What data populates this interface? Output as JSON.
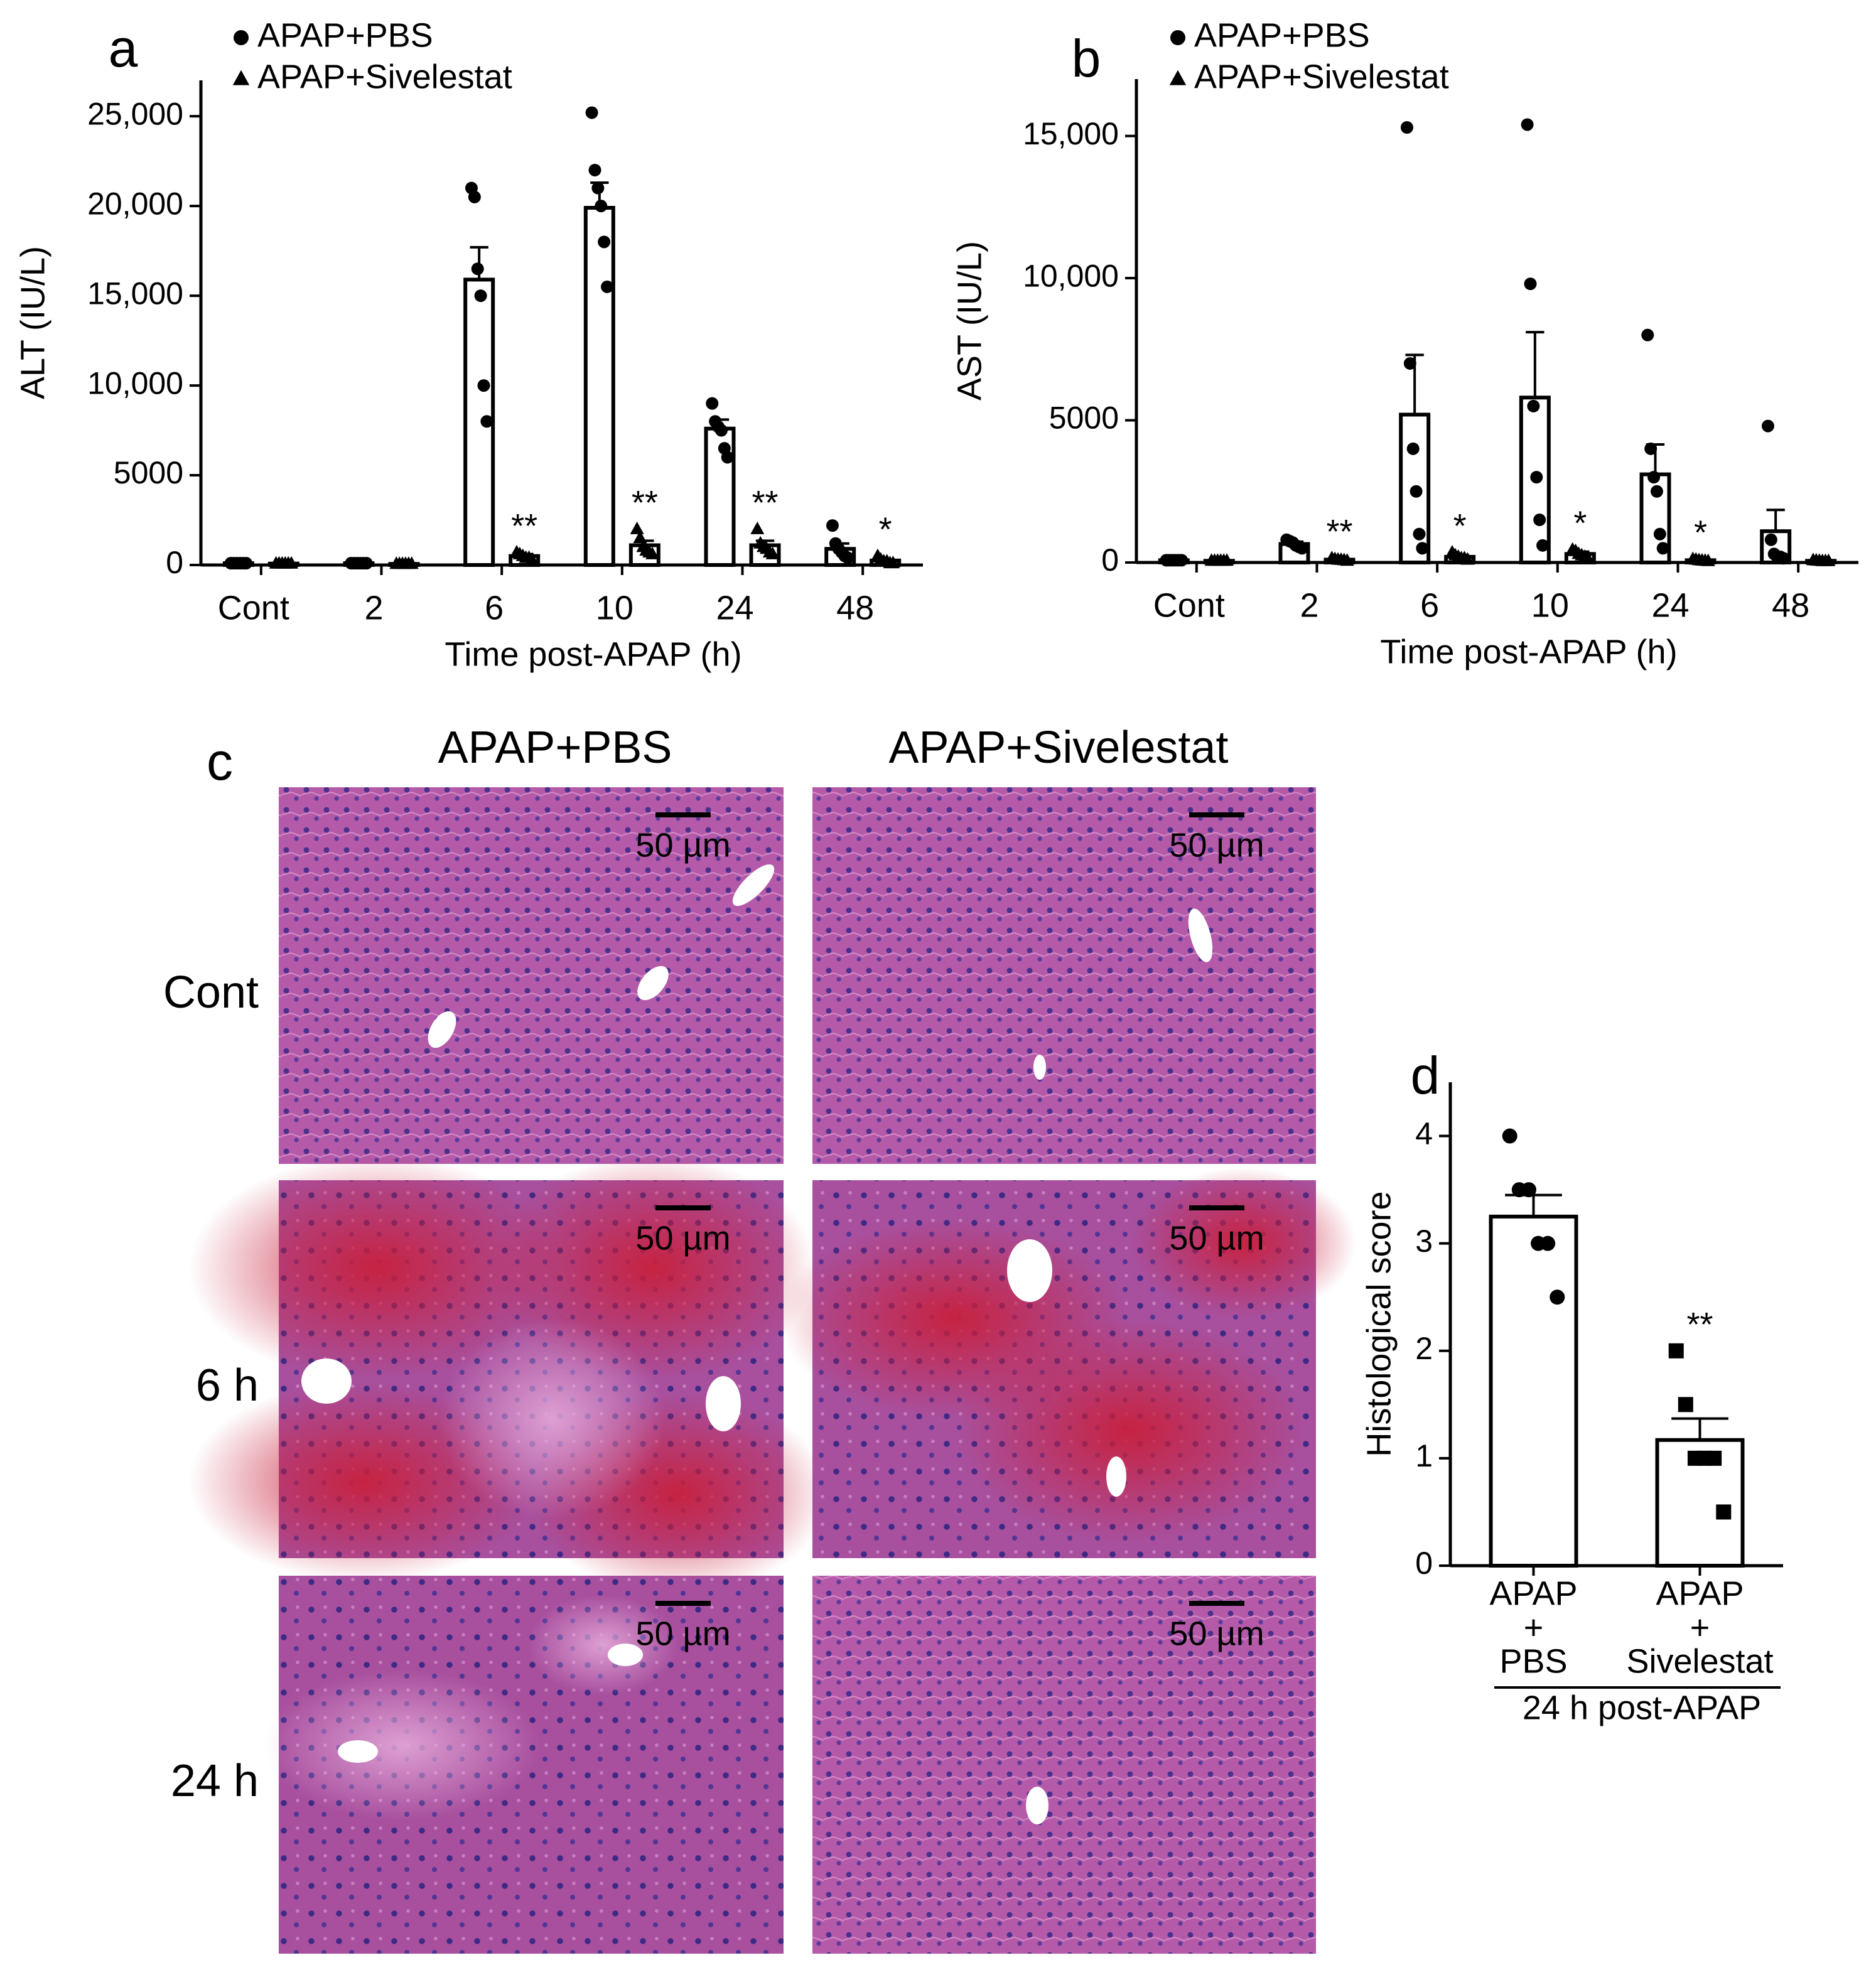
{
  "chart_data": [
    {
      "type": "bar",
      "panel_label": "a",
      "ylabel": "ALT (IU/L)",
      "xlabel": "Time post-APAP (h)",
      "categories": [
        "Cont",
        "2",
        "6",
        "10",
        "24",
        "48"
      ],
      "ylim": [
        0,
        27000
      ],
      "yticks": [
        0,
        5000,
        {
          "value": 10000,
          "label": "10,000"
        },
        {
          "value": 15000,
          "label": "15,000"
        },
        {
          "value": 20000,
          "label": "20,000"
        },
        {
          "value": 25000,
          "label": "25,000"
        }
      ],
      "legend": "top-left",
      "series": [
        {
          "name": "APAP+PBS",
          "marker": "circle",
          "color": "#000000",
          "values": [
            100,
            100,
            15900,
            19900,
            7600,
            900
          ],
          "errors": [
            20,
            20,
            1800,
            1400,
            500,
            300
          ],
          "points": [
            [
              100,
              100,
              100,
              100,
              100,
              100
            ],
            [
              100,
              100,
              100,
              100,
              100,
              100
            ],
            [
              21000,
              20500,
              16500,
              15000,
              10000,
              8000
            ],
            [
              25200,
              22000,
              21000,
              20000,
              18000,
              15500
            ],
            [
              9000,
              8000,
              7700,
              7500,
              6500,
              6000
            ],
            [
              2200,
              1200,
              900,
              700,
              500,
              400
            ]
          ]
        },
        {
          "name": "APAP+Sivelestat",
          "marker": "triangle",
          "color": "#000000",
          "values": [
            80,
            60,
            500,
            1100,
            1100,
            250
          ],
          "errors": [
            10,
            10,
            100,
            250,
            250,
            70
          ],
          "points": [
            [
              80,
              80,
              80,
              80,
              80,
              80
            ],
            [
              60,
              60,
              60,
              60,
              60,
              60
            ],
            [
              700,
              600,
              500,
              400,
              400,
              300
            ],
            [
              2000,
              1500,
              1000,
              800,
              700,
              600
            ],
            [
              2000,
              1200,
              1000,
              900,
              700,
              600
            ],
            [
              500,
              300,
              200,
              200,
              100,
              100
            ]
          ],
          "significance": [
            null,
            null,
            "**",
            "**",
            "**",
            "*"
          ]
        }
      ]
    },
    {
      "type": "bar",
      "panel_label": "b",
      "ylabel": "AST (IU/L)",
      "xlabel": "Time post-APAP (h)",
      "categories": [
        "Cont",
        "2",
        "6",
        "10",
        "24",
        "48"
      ],
      "ylim": [
        0,
        17000
      ],
      "yticks": [
        0,
        5000,
        {
          "value": 10000,
          "label": "10,000"
        },
        {
          "value": 15000,
          "label": "15,000"
        }
      ],
      "legend": "top-left",
      "series": [
        {
          "name": "APAP+PBS",
          "marker": "circle",
          "color": "#000000",
          "values": [
            80,
            650,
            5200,
            5800,
            3100,
            1100
          ],
          "errors": [
            10,
            80,
            2100,
            2300,
            1050,
            750
          ],
          "points": [
            [
              80,
              80,
              80,
              80,
              80,
              80
            ],
            [
              800,
              750,
              700,
              600,
              550,
              500
            ],
            [
              15300,
              7000,
              4000,
              2500,
              1000,
              500
            ],
            [
              15400,
              9800,
              5500,
              3000,
              1500,
              600
            ],
            [
              8000,
              4000,
              3000,
              2500,
              1000,
              500
            ],
            [
              4800,
              800,
              300,
              200,
              200,
              150
            ]
          ]
        },
        {
          "name": "APAP+Sivelestat",
          "marker": "triangle",
          "color": "#000000",
          "values": [
            60,
            100,
            200,
            300,
            80,
            60
          ],
          "errors": [
            10,
            20,
            60,
            80,
            20,
            10
          ],
          "points": [
            [
              60,
              60,
              60,
              60,
              60,
              60
            ],
            [
              150,
              120,
              100,
              90,
              80,
              60
            ],
            [
              350,
              250,
              200,
              150,
              150,
              100
            ],
            [
              450,
              400,
              300,
              250,
              200,
              150
            ],
            [
              120,
              100,
              80,
              70,
              60,
              50
            ],
            [
              80,
              70,
              60,
              50,
              50,
              50
            ]
          ],
          "significance": [
            null,
            "**",
            "*",
            "*",
            "*",
            null
          ]
        }
      ]
    },
    {
      "type": "bar",
      "panel_label": "d",
      "ylabel": "Histological score",
      "xlabel": "24 h post-APAP",
      "categories": [
        [
          "APAP",
          "+",
          "PBS"
        ],
        [
          "APAP",
          "+",
          "Sivelestat"
        ]
      ],
      "ylim": [
        0,
        4.5
      ],
      "yticks": [
        0,
        1,
        2,
        3,
        4
      ],
      "values": [
        3.25,
        1.17
      ],
      "errors": [
        0.2,
        0.2
      ],
      "markers": [
        "circle",
        "square"
      ],
      "points": [
        [
          4,
          3.5,
          3.5,
          3,
          3,
          2.5
        ],
        [
          2,
          1.5,
          1,
          1,
          1,
          0.5
        ]
      ],
      "significance": [
        null,
        "**"
      ]
    }
  ],
  "image_panel": {
    "label": "c",
    "columns": [
      "APAP+PBS",
      "APAP+Sivelestat"
    ],
    "rows": [
      "Cont",
      "6 h",
      "24 h"
    ],
    "scale_bar": "50 µm"
  }
}
